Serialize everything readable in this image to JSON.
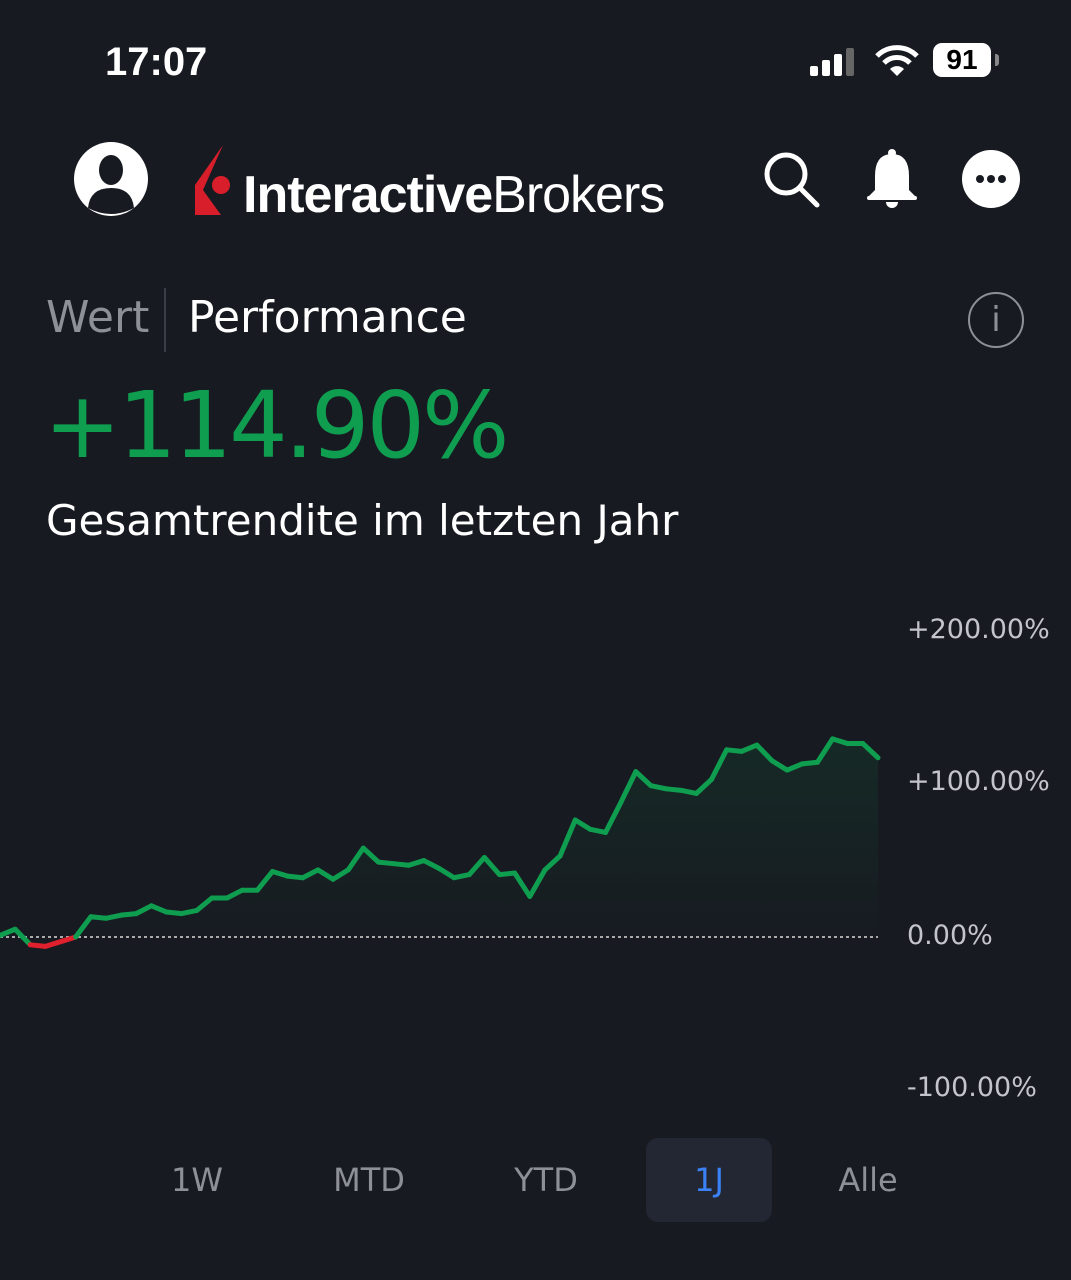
{
  "status_bar": {
    "time": "17:07",
    "battery": "91",
    "icons": [
      "signal-icon",
      "wifi-icon",
      "battery-icon"
    ]
  },
  "header": {
    "brand_bold": "Interactive",
    "brand_light": "Brokers",
    "icons": [
      "avatar-icon",
      "search-icon",
      "bell-icon",
      "more-icon"
    ],
    "brand_color": "#d81e2a"
  },
  "tabs": [
    {
      "label": "Wert",
      "active": false
    },
    {
      "label": "Performance",
      "active": true
    }
  ],
  "summary": {
    "value": "+114.90%",
    "caption": "Gesamtrendite im letzten Jahr",
    "color": "#0f9d4f"
  },
  "ranges": [
    {
      "label": "1W"
    },
    {
      "label": "MTD"
    },
    {
      "label": "YTD"
    },
    {
      "label": "1J",
      "active": true
    },
    {
      "label": "Alle"
    }
  ],
  "chart_data": {
    "type": "line",
    "title": "",
    "ylim": [
      -100,
      200
    ],
    "y_ticks": [
      "+200.00%",
      "+100.00%",
      "0.00%",
      "-100.00%"
    ],
    "y_tick_values": [
      200,
      100,
      0,
      -100
    ],
    "baseline": 0,
    "positive_color": "#0f9d4f",
    "negative_color": "#e0202c",
    "values": [
      1,
      5,
      -5,
      -6,
      -3,
      0,
      13,
      12,
      14,
      15,
      20,
      16,
      15,
      17,
      25,
      25,
      30,
      30,
      42,
      39,
      38,
      43,
      37,
      43,
      57,
      48,
      47,
      46,
      49,
      44,
      38,
      40,
      51,
      40,
      41,
      26,
      43,
      52,
      75,
      69,
      67,
      86,
      106,
      97,
      95,
      94,
      92,
      101,
      120,
      119,
      123,
      113,
      107,
      111,
      112,
      127,
      124,
      124,
      114.9
    ]
  }
}
